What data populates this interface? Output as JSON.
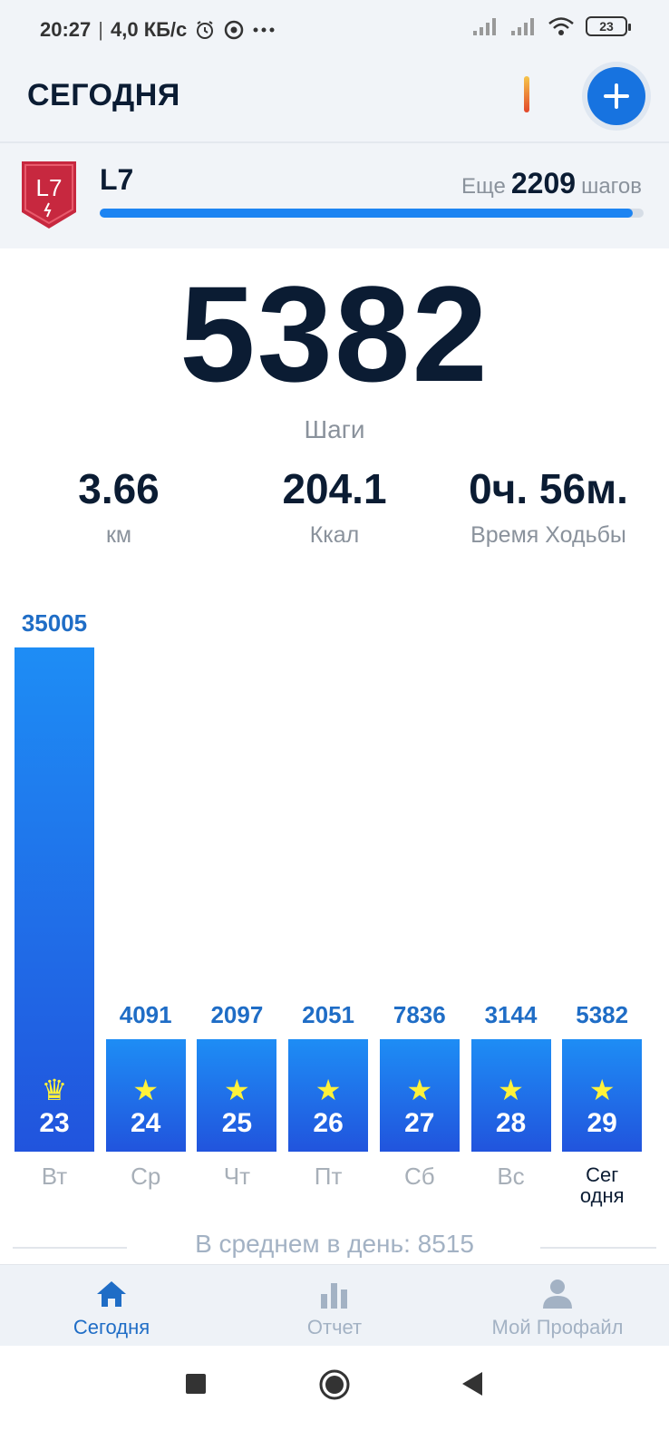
{
  "status_bar": {
    "time": "20:27",
    "speed": "4,0 КБ/с",
    "battery": "23",
    "icons": [
      "alarm-icon",
      "chrome-icon",
      "more-icon",
      "signal-icon",
      "signal-icon",
      "wifi-icon",
      "battery-icon"
    ]
  },
  "header": {
    "title": "СЕГОДНЯ",
    "add_icon": "plus-icon"
  },
  "level": {
    "badge_text": "L7",
    "name": "L7",
    "remaining_prefix": "Еще",
    "remaining_steps": "2209",
    "remaining_suffix": "шагов",
    "progress": 0.98
  },
  "today": {
    "steps": "5382",
    "steps_label": "Шаги",
    "stats": [
      {
        "value": "3.66",
        "label": "км"
      },
      {
        "value": "204.1",
        "label": "Ккал"
      },
      {
        "value": "0ч. 56м.",
        "label": "Время Ходьбы"
      }
    ]
  },
  "chart_data": {
    "type": "bar",
    "categories": [
      "Вт",
      "Ср",
      "Чт",
      "Пт",
      "Сб",
      "Вс",
      "Сегодня"
    ],
    "category_labels": [
      "Вт",
      "Ср",
      "Чт",
      "Пт",
      "Сб",
      "Вс",
      "Сег\nодня"
    ],
    "dates": [
      "23",
      "24",
      "25",
      "26",
      "27",
      "28",
      "29"
    ],
    "values": [
      35005,
      4091,
      2097,
      2051,
      7836,
      3144,
      5382
    ],
    "value_labels": [
      "35005",
      "4091",
      "2097",
      "2051",
      "7836",
      "3144",
      "5382"
    ],
    "icons": [
      "crown-icon",
      "star-icon",
      "star-icon",
      "star-icon",
      "star-icon",
      "star-icon",
      "star-icon"
    ],
    "colors": {
      "bar_top": "#1e8df5",
      "bar_bottom": "#2154dd",
      "value_label": "#1f6dc6",
      "icon": "#fff23a"
    }
  },
  "average": {
    "text": "В среднем в день: 8515"
  },
  "bottom_nav": {
    "items": [
      {
        "label": "Сегодня",
        "icon": "home-icon",
        "active": true
      },
      {
        "label": "Отчет",
        "icon": "bar-chart-icon",
        "active": false
      },
      {
        "label": "Мой Профайл",
        "icon": "person-icon",
        "active": false
      }
    ]
  },
  "system_nav": {
    "icons": [
      "recents-square-icon",
      "home-circle-icon",
      "back-triangle-icon"
    ]
  }
}
